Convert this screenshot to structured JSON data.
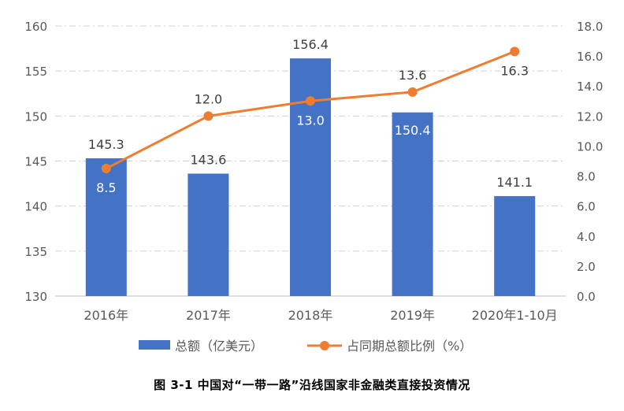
{
  "chart_data": {
    "type": "bar+line",
    "categories": [
      "2016年",
      "2017年",
      "2018年",
      "2019年",
      "2020年1-10月"
    ],
    "series": [
      {
        "name": "总额（亿美元）",
        "type": "bar",
        "axis": "left",
        "color": "#4472C4",
        "values": [
          145.3,
          143.6,
          156.4,
          150.4,
          141.1
        ],
        "labels": [
          "145.3",
          "143.6",
          "156.4",
          "150.4",
          "141.1"
        ]
      },
      {
        "name": "占同期总额比例（%）",
        "type": "line",
        "axis": "right",
        "color": "#ED7D31",
        "values": [
          8.5,
          12.0,
          13.0,
          13.6,
          16.3
        ],
        "labels": [
          "8.5",
          "12.0",
          "13.0",
          "13.6",
          "16.3"
        ]
      }
    ],
    "y_left": {
      "min": 130,
      "max": 160,
      "ticks": [
        "130",
        "135",
        "140",
        "145",
        "150",
        "155",
        "160"
      ]
    },
    "y_right": {
      "min": 0,
      "max": 18,
      "ticks": [
        "0.0",
        "2.0",
        "4.0",
        "6.0",
        "8.0",
        "10.0",
        "12.0",
        "14.0",
        "16.0",
        "18.0"
      ]
    },
    "grid": true,
    "legend_position": "bottom"
  },
  "caption": "图  3-1 中国对“一带一路”沿线国家非金融类直接投资情况"
}
